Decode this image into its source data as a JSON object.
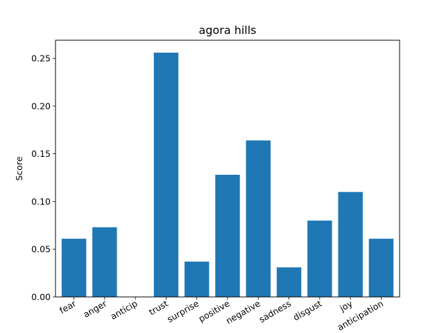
{
  "chart_data": {
    "type": "bar",
    "title": "agora hills",
    "xlabel": "",
    "ylabel": "Score",
    "categories": [
      "fear",
      "anger",
      "anticip",
      "trust",
      "surprise",
      "positive",
      "negative",
      "sadness",
      "disgust",
      "joy",
      "anticipation"
    ],
    "values": [
      0.061,
      0.073,
      0.0,
      0.256,
      0.037,
      0.128,
      0.164,
      0.031,
      0.08,
      0.11,
      0.061
    ],
    "ylim": [
      0,
      0.269
    ],
    "yticks": [
      0.0,
      0.05,
      0.1,
      0.15,
      0.2,
      0.25
    ],
    "ytick_labels": [
      "0.00",
      "0.05",
      "0.10",
      "0.15",
      "0.20",
      "0.25"
    ],
    "bar_color": "#1f77b4",
    "grid": false,
    "legend": "none"
  }
}
